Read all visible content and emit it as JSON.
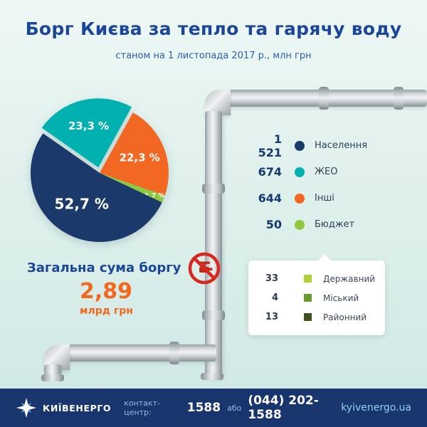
{
  "header": {
    "title": "Борг Києва за тепло та гарячу воду",
    "subtitle": "станом на 1 листопада 2017 р., млн грн"
  },
  "chart_data": {
    "type": "pie",
    "title": "Борг Києва за тепло та гарячу воду",
    "as_of": "станом на 1 листопада 2017 р.",
    "unit": "млн грн",
    "start_angle_deg": 305,
    "slices": [
      {
        "label": "ЖЕО",
        "value": 674,
        "pct": 23.3,
        "percent_label": "23,3 %",
        "color": "#00b1b0",
        "exploded": true
      },
      {
        "label": "Інші",
        "value": 644,
        "pct": 22.3,
        "percent_label": "22,3 %",
        "color": "#f26822",
        "exploded": false
      },
      {
        "label": "Бюджет",
        "value": 50,
        "pct": 1.7,
        "percent_label": "1,7 %",
        "color": "#8dc63f",
        "exploded": false
      },
      {
        "label": "Населення",
        "value": 1521,
        "pct": 52.7,
        "percent_label": "52,7 %",
        "color": "#1b3a6b",
        "exploded": false
      }
    ],
    "legend": [
      {
        "value": "1 521",
        "label": "Населення",
        "color": "#1b3a6b"
      },
      {
        "value": "674",
        "label": "ЖЕО",
        "color": "#00b1b0"
      },
      {
        "value": "644",
        "label": "Інші",
        "color": "#f26822"
      },
      {
        "value": "50",
        "label": "Бюджет",
        "color": "#8dc63f"
      }
    ],
    "budget_breakdown": [
      {
        "value": "33",
        "label": "Державний",
        "color": "#aed136"
      },
      {
        "value": "4",
        "label": "Міський",
        "color": "#6b9a2c"
      },
      {
        "value": "13",
        "label": "Районний",
        "color": "#3c531d"
      }
    ]
  },
  "total": {
    "label": "Загальна сума боргу",
    "value": "2,89",
    "unit": "млрд грн"
  },
  "footer": {
    "brand": "КИЇВЕНЕРГО",
    "contact_label": "контакт-центр:",
    "phone_short": "1588",
    "or_label": "або",
    "phone_full": "(044) 202-1588",
    "website": "kyivenergo.ua"
  }
}
